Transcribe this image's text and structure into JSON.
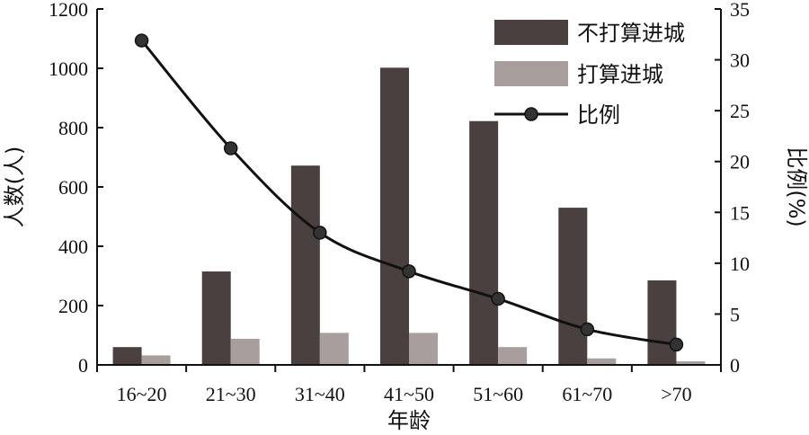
{
  "chart_data": {
    "type": "bar",
    "categories": [
      "16~20",
      "21~30",
      "31~40",
      "41~50",
      "51~60",
      "61~70",
      ">70"
    ],
    "series": [
      {
        "name": "不打算进城",
        "type": "bar",
        "axis": "left",
        "color": "#4a4040",
        "values": [
          60,
          315,
          672,
          1002,
          822,
          530,
          285
        ]
      },
      {
        "name": "打算进城",
        "type": "bar",
        "axis": "left",
        "color": "#a89e9e",
        "values": [
          32,
          88,
          108,
          108,
          60,
          22,
          12
        ]
      },
      {
        "name": "比例",
        "type": "line",
        "axis": "right",
        "color": "#111111",
        "marker": "circle",
        "values": [
          31.9,
          21.3,
          13.0,
          9.2,
          6.5,
          3.5,
          2.0
        ]
      }
    ],
    "xlabel": "年龄",
    "ylabel": "人数(人)",
    "y2label": "比例(%)",
    "ylim": [
      0,
      1200
    ],
    "y2lim": [
      0,
      35
    ],
    "yticks": [
      "0",
      "200",
      "400",
      "600",
      "800",
      "1000",
      "1200"
    ],
    "y2ticks": [
      "0",
      "5",
      "10",
      "15",
      "20",
      "25",
      "30",
      "35"
    ],
    "grid": false,
    "legend_position": "top-right"
  }
}
